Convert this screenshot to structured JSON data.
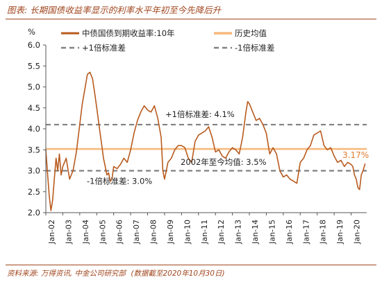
{
  "header": {
    "title": "图表: 长期国债收益率显示的利率水平年初至今先降后升"
  },
  "footer": {
    "source": "资料来源: 万得资讯, 中金公司研究部",
    "note": "(数据截至2020年10月30日)"
  },
  "colors": {
    "series": "#b85a1e",
    "mean": "#f7b97c",
    "band": "#808080",
    "accent": "#a0461e",
    "text": "#222222"
  },
  "chart_data": {
    "type": "line",
    "ylabel": "%",
    "ylim": [
      2.0,
      6.0
    ],
    "yticks": [
      "2.0",
      "2.5",
      "3.0",
      "3.5",
      "4.0",
      "4.5",
      "5.0",
      "5.5",
      "6.0"
    ],
    "xticks": [
      "Jan-02",
      "Jan-03",
      "Jan-04",
      "Jan-05",
      "Jan-06",
      "Jan-07",
      "Jan-08",
      "Jan-09",
      "Jan-10",
      "Jan-11",
      "Jan-12",
      "Jan-13",
      "Jan-14",
      "Jan-15",
      "Jan-16",
      "Jan-17",
      "Jan-18",
      "Jan-19",
      "Jan-20"
    ],
    "legend": {
      "position": "top",
      "items": [
        {
          "key": "series",
          "label": "中债国债到期收益率:10年"
        },
        {
          "key": "mean",
          "label": "历史均值"
        },
        {
          "key": "upper",
          "label": "+1倍标准差"
        },
        {
          "key": "lower",
          "label": "-1倍标准差"
        }
      ]
    },
    "reference_lines": {
      "mean": 3.52,
      "upper": 4.1,
      "lower": 3.0
    },
    "annotations": {
      "upper": "+1倍标准差: 4.1%",
      "mean": "2002年至今均值: 3.5%",
      "lower": "-1倍标准差: 3.0%",
      "last": "3.17%"
    },
    "series": [
      {
        "name": "中债国债到期收益率:10年",
        "x": [
          2002.0,
          2002.1,
          2002.2,
          2002.3,
          2002.4,
          2002.5,
          2002.6,
          2002.7,
          2002.8,
          2002.9,
          2003.0,
          2003.2,
          2003.4,
          2003.6,
          2003.8,
          2004.0,
          2004.15,
          2004.3,
          2004.45,
          2004.6,
          2004.75,
          2004.9,
          2005.0,
          2005.1,
          2005.2,
          2005.3,
          2005.4,
          2005.5,
          2005.6,
          2005.7,
          2005.8,
          2005.9,
          2006.0,
          2006.2,
          2006.4,
          2006.6,
          2006.8,
          2007.0,
          2007.2,
          2007.4,
          2007.6,
          2007.8,
          2008.0,
          2008.2,
          2008.4,
          2008.6,
          2008.8,
          2008.9,
          2009.0,
          2009.1,
          2009.2,
          2009.4,
          2009.6,
          2009.8,
          2010.0,
          2010.2,
          2010.4,
          2010.6,
          2010.8,
          2011.0,
          2011.2,
          2011.4,
          2011.6,
          2011.8,
          2012.0,
          2012.2,
          2012.4,
          2012.6,
          2012.8,
          2013.0,
          2013.2,
          2013.4,
          2013.6,
          2013.8,
          2013.9,
          2014.0,
          2014.2,
          2014.4,
          2014.6,
          2014.8,
          2015.0,
          2015.2,
          2015.4,
          2015.6,
          2015.8,
          2016.0,
          2016.2,
          2016.4,
          2016.6,
          2016.8,
          2017.0,
          2017.2,
          2017.4,
          2017.6,
          2017.8,
          2018.0,
          2018.2,
          2018.4,
          2018.6,
          2018.8,
          2019.0,
          2019.2,
          2019.4,
          2019.6,
          2019.8,
          2020.0,
          2020.1,
          2020.2,
          2020.3,
          2020.4,
          2020.5,
          2020.6,
          2020.7,
          2020.83
        ],
        "y": [
          3.5,
          2.95,
          2.4,
          2.05,
          2.3,
          2.8,
          3.3,
          3.0,
          3.4,
          2.9,
          3.1,
          3.3,
          2.8,
          3.0,
          3.45,
          4.1,
          4.6,
          4.95,
          5.3,
          5.35,
          5.2,
          4.8,
          4.5,
          4.2,
          3.9,
          3.6,
          3.3,
          3.1,
          2.9,
          2.95,
          2.75,
          2.8,
          3.1,
          3.05,
          3.15,
          3.3,
          3.2,
          3.5,
          3.9,
          4.2,
          4.4,
          4.55,
          4.45,
          4.4,
          4.55,
          4.25,
          3.8,
          3.0,
          2.8,
          3.0,
          3.2,
          3.3,
          3.5,
          3.6,
          3.6,
          3.55,
          3.3,
          3.2,
          3.7,
          3.85,
          3.9,
          3.95,
          4.05,
          3.8,
          3.45,
          3.5,
          3.35,
          3.3,
          3.45,
          3.55,
          3.5,
          3.4,
          3.8,
          4.4,
          4.65,
          4.6,
          4.4,
          4.2,
          4.25,
          4.1,
          3.9,
          3.4,
          3.55,
          3.4,
          3.0,
          2.85,
          2.9,
          2.8,
          2.75,
          2.7,
          3.2,
          3.3,
          3.5,
          3.6,
          3.85,
          3.9,
          3.95,
          3.6,
          3.5,
          3.55,
          3.35,
          3.2,
          3.25,
          3.1,
          3.2,
          3.15,
          3.1,
          2.9,
          2.8,
          2.6,
          2.55,
          2.9,
          3.0,
          3.17
        ]
      }
    ]
  }
}
